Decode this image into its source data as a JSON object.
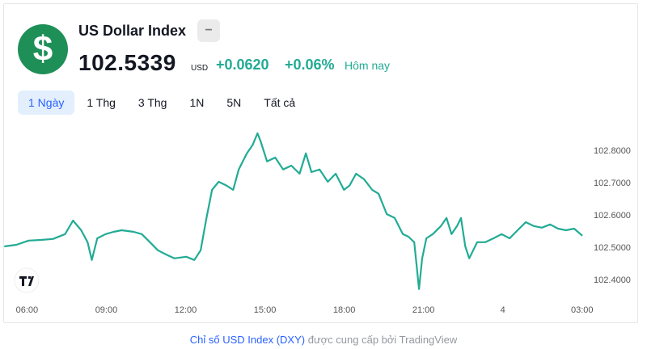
{
  "header": {
    "icon": "$",
    "name": "US Dollar Index",
    "badge": "−",
    "price": "102.5339",
    "currency": "USD",
    "change": "+0.0620",
    "change_percent": "+0.06%",
    "period": "Hôm nay"
  },
  "tabs": [
    "1 Ngày",
    "1 Thg",
    "3 Thg",
    "1N",
    "5N",
    "Tất cả"
  ],
  "active_tab": 0,
  "footer": {
    "link": "Chỉ số USD Index (DXY)",
    "text": "được cung cấp bởi TradingView"
  },
  "chart_data": {
    "type": "line",
    "color": "#22ab94",
    "x": [
      5.14,
      5.6,
      6.06,
      6.52,
      6.98,
      7.44,
      7.74,
      8.05,
      8.29,
      8.45,
      8.66,
      8.97,
      9.27,
      9.58,
      10.04,
      10.34,
      10.65,
      10.95,
      11.26,
      11.57,
      12.02,
      12.33,
      12.57,
      12.79,
      13.0,
      13.25,
      13.55,
      13.8,
      14.01,
      14.32,
      14.53,
      14.72,
      14.84,
      15.08,
      15.39,
      15.69,
      16.0,
      16.31,
      16.55,
      16.76,
      17.07,
      17.38,
      17.68,
      17.99,
      18.2,
      18.45,
      18.75,
      19.06,
      19.3,
      19.61,
      19.91,
      20.22,
      20.43,
      20.65,
      20.83,
      20.95,
      21.11,
      21.35,
      21.66,
      21.87,
      22.06,
      22.27,
      22.42,
      22.58,
      22.73,
      23.03,
      23.34,
      23.65,
      23.95,
      24.26,
      24.56,
      24.87,
      25.17,
      25.48,
      25.79,
      26.09,
      26.39,
      26.7,
      27.01
    ],
    "values": [
      102.505,
      102.51,
      102.523,
      102.525,
      102.528,
      102.543,
      102.585,
      102.555,
      102.518,
      102.463,
      102.53,
      102.543,
      102.55,
      102.555,
      102.55,
      102.543,
      102.518,
      102.493,
      102.48,
      102.468,
      102.473,
      102.463,
      102.493,
      102.593,
      102.68,
      102.705,
      102.693,
      102.68,
      102.743,
      102.793,
      102.818,
      102.855,
      102.83,
      102.768,
      102.78,
      102.743,
      102.755,
      102.73,
      102.793,
      102.735,
      102.743,
      102.705,
      102.73,
      102.68,
      102.693,
      102.73,
      102.713,
      102.68,
      102.668,
      102.605,
      102.593,
      102.543,
      102.535,
      102.518,
      102.373,
      102.468,
      102.53,
      102.543,
      102.568,
      102.593,
      102.543,
      102.568,
      102.593,
      102.505,
      102.468,
      102.518,
      102.518,
      102.53,
      102.543,
      102.53,
      102.555,
      102.58,
      102.568,
      102.563,
      102.573,
      102.56,
      102.555,
      102.56,
      102.538
    ],
    "xlim": [
      5.1,
      27.1
    ],
    "ylim": [
      102.35,
      102.88
    ],
    "xticks": [
      {
        "value": 6,
        "label": "06:00"
      },
      {
        "value": 9,
        "label": "09:00"
      },
      {
        "value": 12,
        "label": "12:00"
      },
      {
        "value": 15,
        "label": "15:00"
      },
      {
        "value": 18,
        "label": "18:00"
      },
      {
        "value": 21,
        "label": "21:00"
      },
      {
        "value": 24,
        "label": "4"
      },
      {
        "value": 27,
        "label": "03:00"
      }
    ],
    "yticks": [
      {
        "value": 102.4,
        "label": "102.4000"
      },
      {
        "value": 102.5,
        "label": "102.5000"
      },
      {
        "value": 102.6,
        "label": "102.6000"
      },
      {
        "value": 102.7,
        "label": "102.7000"
      },
      {
        "value": 102.8,
        "label": "102.8000"
      }
    ],
    "grid": false
  }
}
